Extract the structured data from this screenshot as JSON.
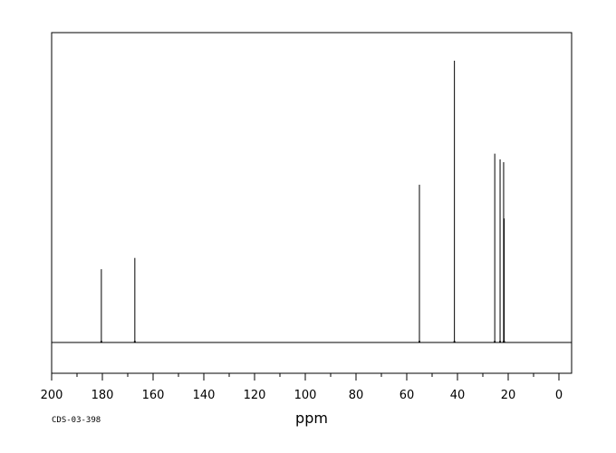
{
  "chart_data": {
    "type": "line",
    "title": "",
    "xlabel": "ppm",
    "ylabel": "",
    "xlim": [
      200,
      -5
    ],
    "x_reversed": true,
    "x_ticks_major": [
      200,
      180,
      160,
      140,
      120,
      100,
      80,
      60,
      40,
      20,
      0
    ],
    "x_tick_labels": [
      "200",
      "180",
      "160",
      "140",
      "120",
      "100",
      "80",
      "60",
      "40",
      "20",
      "0"
    ],
    "x_ticks_minor_step": 10,
    "ylim": [
      0,
      1.0
    ],
    "grid": false,
    "legend": "none",
    "line_color": "#000000",
    "peaks": [
      {
        "ppm": 180.4,
        "height": 0.26
      },
      {
        "ppm": 167.2,
        "height": 0.3
      },
      {
        "ppm": 55.0,
        "height": 0.56
      },
      {
        "ppm": 41.2,
        "height": 1.0
      },
      {
        "ppm": 25.3,
        "height": 0.67
      },
      {
        "ppm": 23.2,
        "height": 0.65
      },
      {
        "ppm": 21.8,
        "height": 0.64
      },
      {
        "ppm": 21.6,
        "height": 0.44
      }
    ]
  },
  "footnote": "CDS-03-398"
}
